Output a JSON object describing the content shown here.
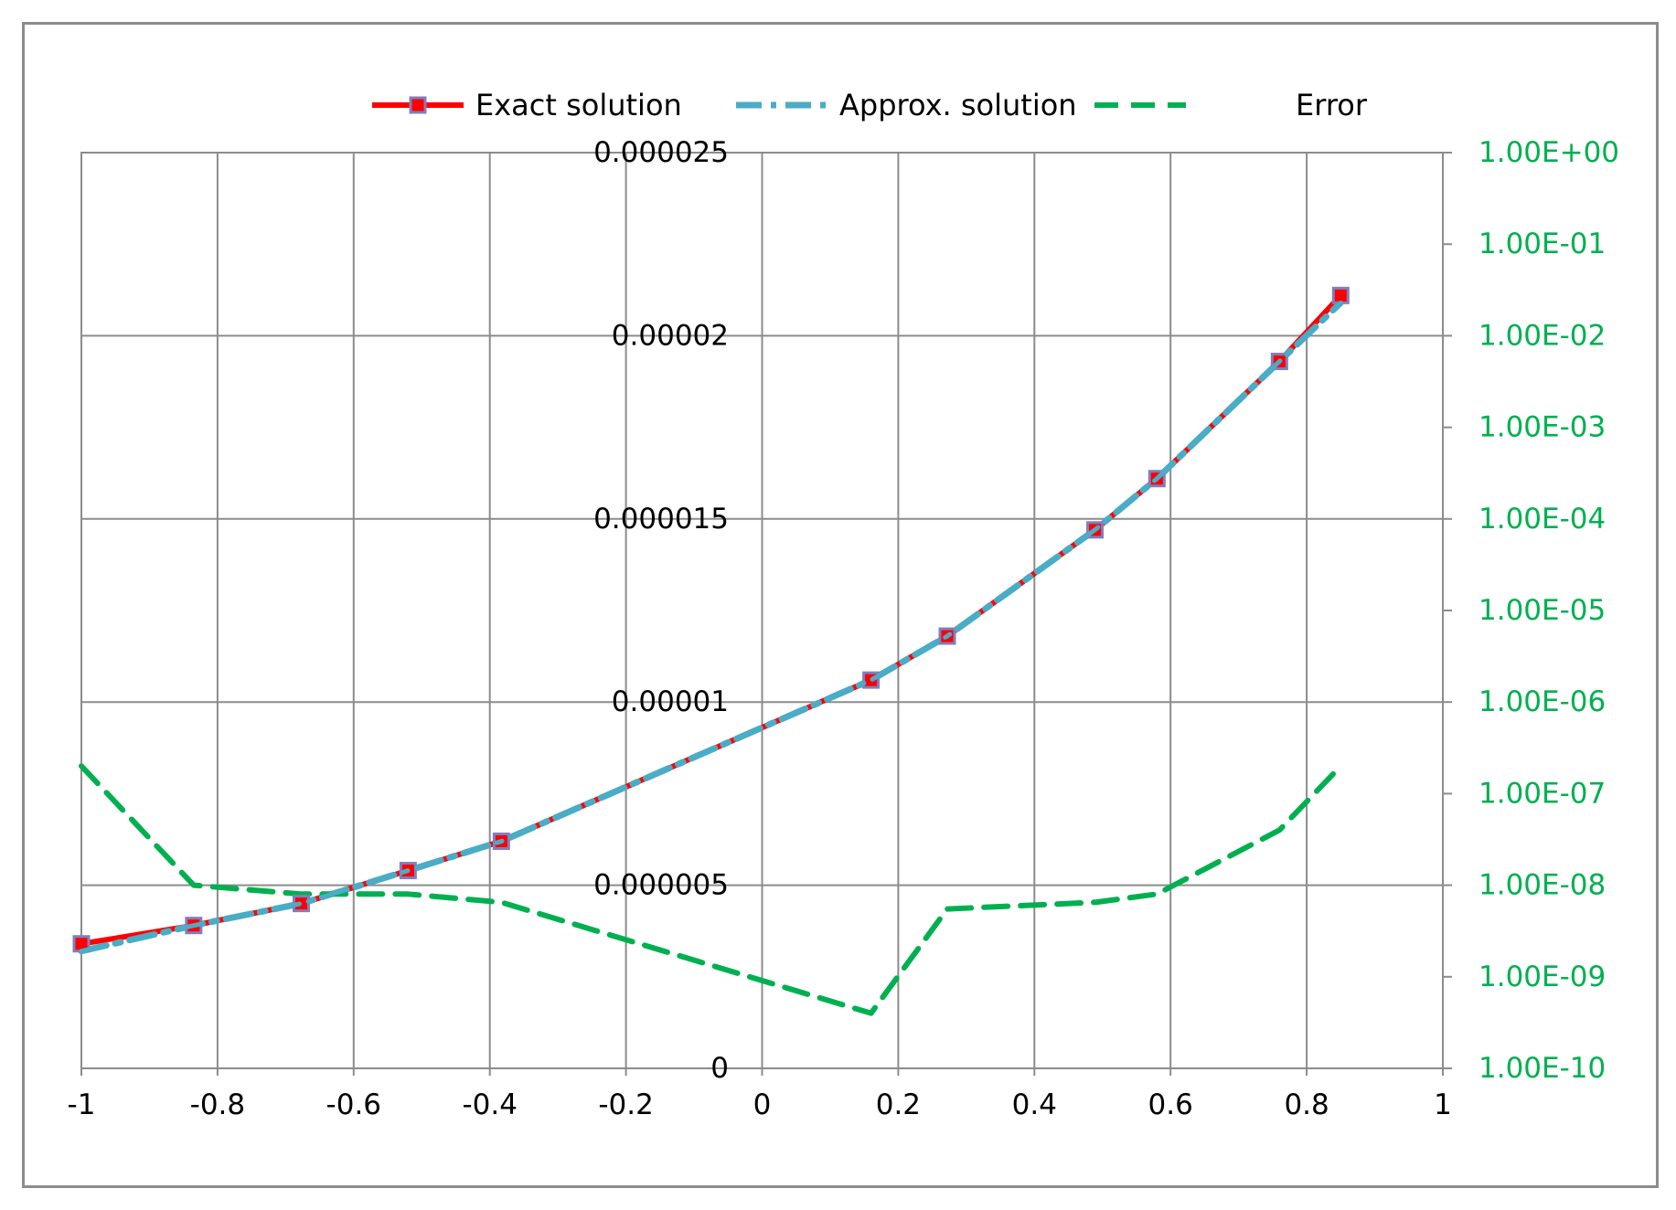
{
  "chart_data": {
    "type": "line",
    "title": "",
    "xlabel": "",
    "ylabel": "",
    "y2label": "",
    "xlim": [
      -1,
      1
    ],
    "ylim": [
      0,
      2.5e-05
    ],
    "y2lim": [
      1e-10,
      1
    ],
    "y2scale": "log",
    "grid": true,
    "legend_position": "top-center",
    "x_ticks": [
      "-1",
      "-0.8",
      "-0.6",
      "-0.4",
      "-0.2",
      "0",
      "0.2",
      "0.4",
      "0.6",
      "0.8",
      "1"
    ],
    "x_tick_values": [
      -1,
      -0.8,
      -0.6,
      -0.4,
      -0.2,
      0,
      0.2,
      0.4,
      0.6,
      0.8,
      1
    ],
    "y_ticks": [
      "0",
      "0.000005",
      "0.00001",
      "0.000015",
      "0.00002",
      "0.000025"
    ],
    "y_tick_values": [
      0,
      5e-06,
      1e-05,
      1.5e-05,
      2e-05,
      2.5e-05
    ],
    "y2_ticks": [
      "1.00E-10",
      "1.00E-09",
      "1.00E-08",
      "1.00E-07",
      "1.00E-06",
      "1.00E-05",
      "1.00E-04",
      "1.00E-03",
      "1.00E-02",
      "1.00E-01",
      "1.00E+00"
    ],
    "y2_tick_values": [
      1e-10,
      1e-09,
      1e-08,
      1e-07,
      1e-06,
      1e-05,
      0.0001,
      0.001,
      0.01,
      0.1,
      1
    ],
    "series": [
      {
        "name": "Exact solution",
        "axis": "left",
        "color": "#ff0000",
        "marker_color": "#7f7fbf",
        "style": "solid-marker",
        "x": [
          -1,
          -0.835,
          -0.677,
          -0.52,
          -0.383,
          0.16,
          0.272,
          0.489,
          0.58,
          0.76,
          0.85
        ],
        "y": [
          3.4e-06,
          3.9e-06,
          4.5e-06,
          5.4e-06,
          6.2e-06,
          1.06e-05,
          1.18e-05,
          1.47e-05,
          1.61e-05,
          1.93e-05,
          2.11e-05
        ]
      },
      {
        "name": "Approx. solution",
        "axis": "left",
        "color": "#4bacc6",
        "style": "dash-dot",
        "x": [
          -1,
          -0.835,
          -0.677,
          -0.52,
          -0.383,
          0.16,
          0.272,
          0.489,
          0.58,
          0.76,
          0.85
        ],
        "y": [
          3.2e-06,
          3.9e-06,
          4.5e-06,
          5.4e-06,
          6.2e-06,
          1.06e-05,
          1.18e-05,
          1.47e-05,
          1.61e-05,
          1.93e-05,
          2.09e-05
        ]
      },
      {
        "name": "Error",
        "axis": "right",
        "color": "#00b050",
        "style": "dashed",
        "x": [
          -1,
          -0.835,
          -0.677,
          -0.52,
          -0.383,
          0.16,
          0.272,
          0.489,
          0.58,
          0.76,
          0.85
        ],
        "y": [
          2e-07,
          1e-08,
          8e-09,
          8e-09,
          6.5e-09,
          4e-10,
          5.5e-09,
          6.5e-09,
          8e-09,
          4e-08,
          2e-07
        ]
      }
    ]
  }
}
